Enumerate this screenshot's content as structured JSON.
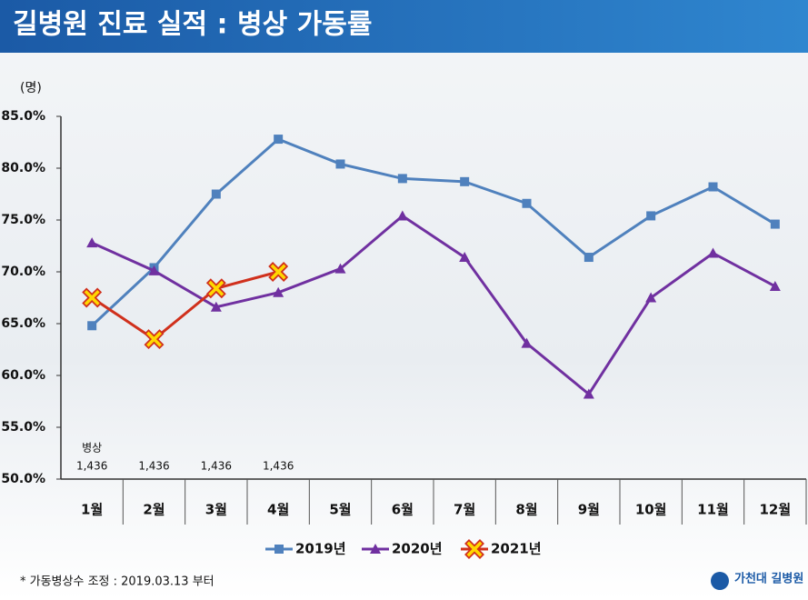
{
  "chart_data": {
    "type": "line",
    "title": "길병원 진료 실적 : 병상 가동률",
    "y_label": "(명)",
    "categories": [
      "1월",
      "2월",
      "3월",
      "4월",
      "5월",
      "6월",
      "7월",
      "8월",
      "9월",
      "10월",
      "11월",
      "12월"
    ],
    "series": [
      {
        "name": "2019년",
        "color": "#4f81bd",
        "marker": "square",
        "values": [
          64.8,
          70.4,
          77.5,
          82.8,
          80.4,
          79.0,
          78.7,
          76.6,
          71.4,
          75.4,
          78.2,
          74.6
        ]
      },
      {
        "name": "2020년",
        "color": "#7030a0",
        "marker": "triangle",
        "values": [
          72.8,
          70.1,
          66.6,
          68.0,
          70.3,
          75.4,
          71.4,
          63.1,
          58.2,
          67.5,
          71.8,
          68.6
        ]
      },
      {
        "name": "2021년",
        "color": "#d0301c",
        "marker": "x",
        "marker_color": "#ffd700",
        "values": [
          67.5,
          63.5,
          68.4,
          70.0,
          null,
          null,
          null,
          null,
          null,
          null,
          null,
          null
        ]
      }
    ],
    "ylim": [
      50,
      85
    ],
    "yticks": [
      {
        "value": 50,
        "label": "50.0%"
      },
      {
        "value": 55,
        "label": "55.0%"
      },
      {
        "value": 60,
        "label": "60.0%"
      },
      {
        "value": 65,
        "label": "65.0%"
      },
      {
        "value": 70,
        "label": "70.0%"
      },
      {
        "value": 75,
        "label": "75.0%"
      },
      {
        "value": 80,
        "label": "80.0%"
      },
      {
        "value": 85,
        "label": "85.0%"
      }
    ],
    "grid": false,
    "legend": "bottom",
    "beds": {
      "label": "병상",
      "values": [
        1436,
        1436,
        1436,
        1436
      ],
      "value_labels": [
        "1,436",
        "1,436",
        "1,436",
        "1,436"
      ]
    },
    "footnote": "* 가동병상수 조정 : 2019.03.13 부터",
    "logo": "가천대 길병원"
  }
}
